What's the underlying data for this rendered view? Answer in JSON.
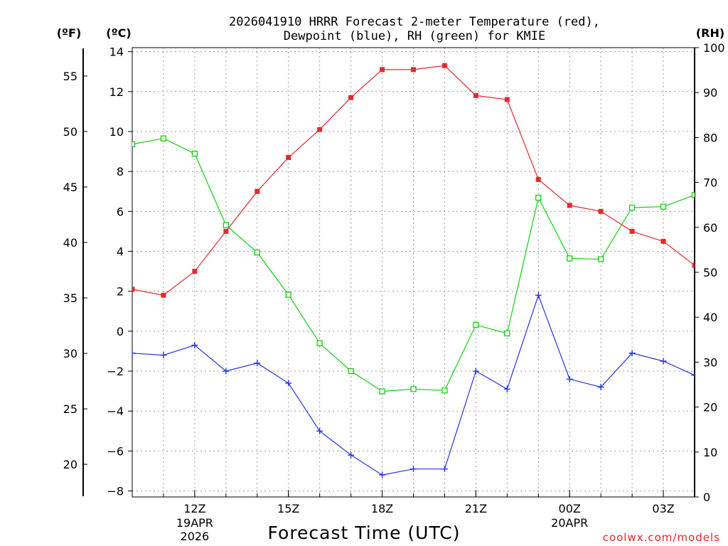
{
  "chart_data": {
    "type": "line",
    "title_line1": "2026041910 HRRR Forecast 2-meter Temperature (red),",
    "title_line2": "Dewpoint (blue), RH (green) for KMIE",
    "xlabel": "Forecast Time (UTC)",
    "credit": "coolwx.com/models",
    "units": {
      "left_outer": "(ºF)",
      "left_inner": "(ºC)",
      "right": "(RH)"
    },
    "x_hours": [
      10,
      11,
      12,
      13,
      14,
      15,
      16,
      17,
      18,
      19,
      20,
      21,
      22,
      23,
      24,
      25,
      26,
      27,
      28
    ],
    "x_range": [
      10,
      28
    ],
    "x_ticks": [
      {
        "hour": 12,
        "label": "12Z",
        "sub1": "19APR",
        "sub2": "2026"
      },
      {
        "hour": 15,
        "label": "15Z",
        "sub1": "",
        "sub2": ""
      },
      {
        "hour": 18,
        "label": "18Z",
        "sub1": "",
        "sub2": ""
      },
      {
        "hour": 21,
        "label": "21Z",
        "sub1": "",
        "sub2": ""
      },
      {
        "hour": 24,
        "label": "00Z",
        "sub1": "20APR",
        "sub2": ""
      },
      {
        "hour": 27,
        "label": "03Z",
        "sub1": "",
        "sub2": ""
      }
    ],
    "celsius_range": [
      -8.3,
      14.2
    ],
    "celsius_ticks": [
      14,
      12,
      10,
      8,
      6,
      4,
      2,
      0,
      -2,
      -4,
      -6,
      -8
    ],
    "fahrenheit_ticks": [
      55,
      50,
      45,
      40,
      35,
      30,
      25,
      20
    ],
    "rh_range": [
      0,
      100
    ],
    "rh_ticks": [
      100,
      90,
      80,
      70,
      60,
      50,
      40,
      30,
      20,
      10,
      0
    ],
    "colors": {
      "temperature": "#e8282c",
      "dewpoint": "#2433e0",
      "rh": "#10d010"
    },
    "series": [
      {
        "name": "Temperature",
        "axis": "celsius",
        "marker": "filled-square",
        "values": [
          2.1,
          1.8,
          3.0,
          5.0,
          7.0,
          8.7,
          10.1,
          11.7,
          13.1,
          13.1,
          13.3,
          11.8,
          11.6,
          7.6,
          6.3,
          6.0,
          5.0,
          4.5,
          3.3
        ]
      },
      {
        "name": "Dewpoint",
        "axis": "celsius",
        "marker": "plus",
        "values": [
          -1.1,
          -1.2,
          -0.7,
          -2.0,
          -1.6,
          -2.6,
          -5.0,
          -6.2,
          -7.2,
          -6.9,
          -6.9,
          -2.0,
          -2.9,
          1.8,
          -2.4,
          -2.8,
          -1.1,
          -1.5,
          -2.2
        ]
      },
      {
        "name": "RH",
        "axis": "rh",
        "marker": "open-square",
        "values": [
          78.5,
          79.8,
          76.4,
          60.5,
          54.4,
          45.0,
          34.2,
          28.0,
          23.5,
          24.0,
          23.7,
          38.3,
          36.4,
          66.6,
          53.1,
          52.9,
          64.4,
          64.6,
          67.2
        ]
      }
    ]
  }
}
